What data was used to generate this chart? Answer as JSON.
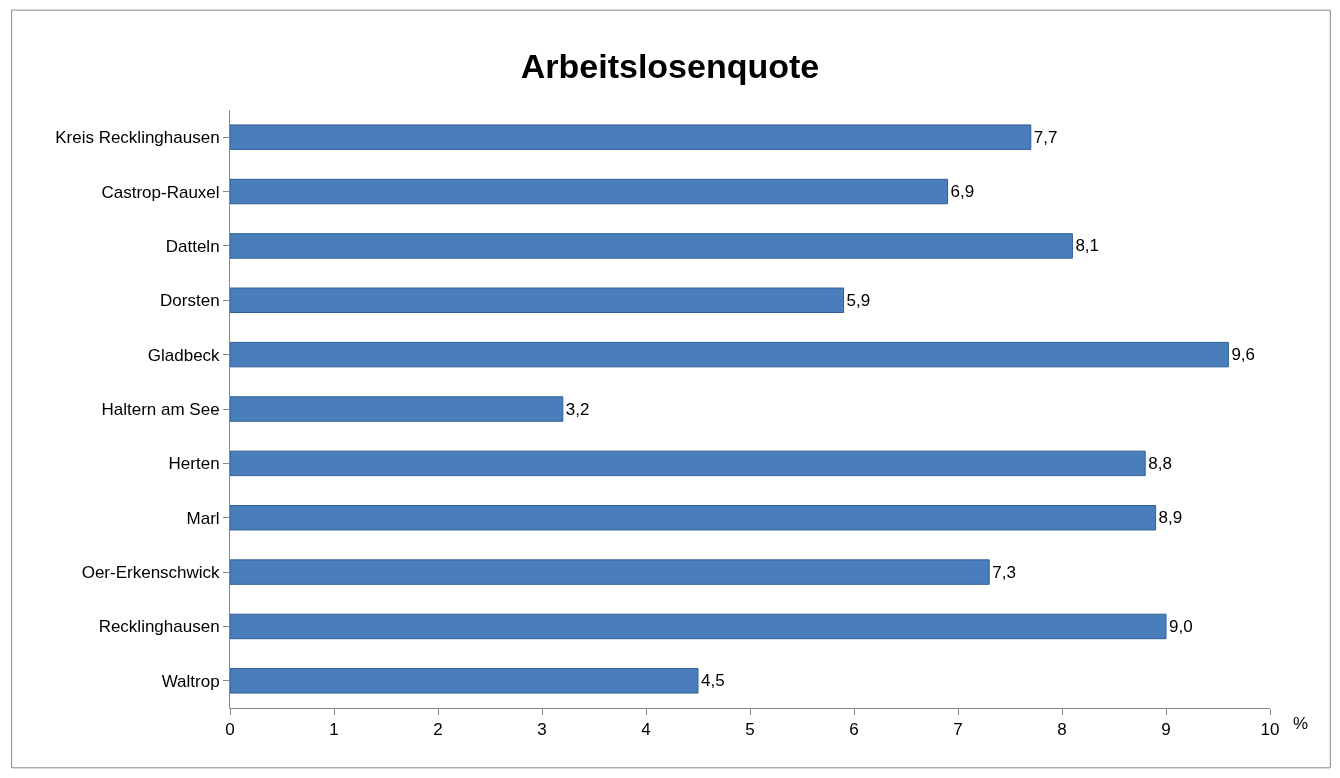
{
  "chart_data": {
    "type": "bar",
    "orientation": "horizontal",
    "title": "Arbeitslosenquote",
    "xlabel": "%",
    "categories": [
      "Kreis Recklinghausen",
      "Castrop-Rauxel",
      "Datteln",
      "Dorsten",
      "Gladbeck",
      "Haltern am See",
      "Herten",
      "Marl",
      "Oer-Erkenschwick",
      "Recklinghausen",
      "Waltrop"
    ],
    "values": [
      7.7,
      6.9,
      8.1,
      5.9,
      9.6,
      3.2,
      8.8,
      8.9,
      7.3,
      9.0,
      4.5
    ],
    "value_labels": [
      "7,7",
      "6,9",
      "8,1",
      "5,9",
      "9,6",
      "3,2",
      "8,8",
      "8,9",
      "7,3",
      "9,0",
      "4,5"
    ],
    "color": "#4a7ebb",
    "xlim": [
      0,
      10
    ],
    "xticks": [
      0,
      1,
      2,
      3,
      4,
      5,
      6,
      7,
      8,
      9,
      10
    ]
  }
}
